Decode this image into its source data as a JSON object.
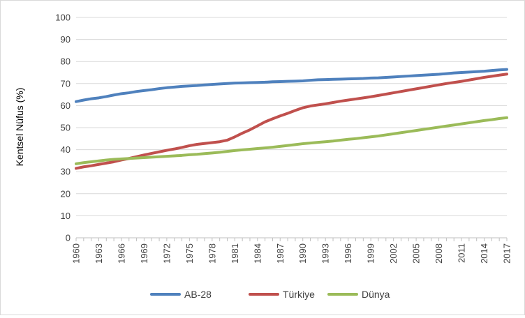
{
  "chart_data": {
    "type": "line",
    "title": "",
    "xlabel": "",
    "ylabel": "Kentsel Nüfus (%)",
    "ylim": [
      0,
      100
    ],
    "yticks": [
      "0",
      "10",
      "20",
      "30",
      "40",
      "50",
      "60",
      "70",
      "80",
      "90",
      "100"
    ],
    "xtick_labels": [
      "1960",
      "1963",
      "1966",
      "1969",
      "1972",
      "1975",
      "1978",
      "1981",
      "1984",
      "1987",
      "1990",
      "1993",
      "1996",
      "1999",
      "2002",
      "2005",
      "2008",
      "2011",
      "2014",
      "2017"
    ],
    "grid": true,
    "legend_position": "bottom",
    "x": [
      1960,
      1961,
      1962,
      1963,
      1964,
      1965,
      1966,
      1967,
      1968,
      1969,
      1970,
      1971,
      1972,
      1973,
      1974,
      1975,
      1976,
      1977,
      1978,
      1979,
      1980,
      1981,
      1982,
      1983,
      1984,
      1985,
      1986,
      1987,
      1988,
      1989,
      1990,
      1991,
      1992,
      1993,
      1994,
      1995,
      1996,
      1997,
      1998,
      1999,
      2000,
      2001,
      2002,
      2003,
      2004,
      2005,
      2006,
      2007,
      2008,
      2009,
      2010,
      2011,
      2012,
      2013,
      2014,
      2015,
      2016,
      2017
    ],
    "series": [
      {
        "name": "AB-28",
        "color": "#4f81bd",
        "values": [
          61.8,
          62.5,
          63.1,
          63.5,
          64.1,
          64.8,
          65.4,
          65.8,
          66.4,
          66.8,
          67.2,
          67.7,
          68.1,
          68.4,
          68.7,
          68.9,
          69.1,
          69.4,
          69.6,
          69.8,
          70.0,
          70.2,
          70.3,
          70.4,
          70.5,
          70.6,
          70.8,
          70.9,
          71.0,
          71.1,
          71.2,
          71.5,
          71.7,
          71.8,
          71.9,
          72.0,
          72.1,
          72.2,
          72.3,
          72.5,
          72.6,
          72.8,
          73.0,
          73.2,
          73.4,
          73.6,
          73.8,
          74.0,
          74.2,
          74.5,
          74.8,
          75.0,
          75.2,
          75.4,
          75.6,
          75.9,
          76.2,
          76.4
        ]
      },
      {
        "name": "Türkiye",
        "color": "#c0504d",
        "values": [
          31.5,
          32.2,
          32.7,
          33.3,
          33.9,
          34.5,
          35.3,
          36.0,
          36.8,
          37.6,
          38.3,
          39.0,
          39.7,
          40.3,
          41.0,
          41.8,
          42.4,
          42.8,
          43.2,
          43.6,
          44.3,
          45.8,
          47.5,
          49.0,
          50.8,
          52.6,
          54.0,
          55.3,
          56.5,
          57.8,
          59.0,
          59.8,
          60.3,
          60.8,
          61.4,
          62.0,
          62.5,
          63.0,
          63.5,
          64.0,
          64.6,
          65.2,
          65.8,
          66.4,
          67.0,
          67.6,
          68.2,
          68.8,
          69.4,
          70.0,
          70.5,
          71.0,
          71.6,
          72.2,
          72.8,
          73.3,
          73.8,
          74.3
        ]
      },
      {
        "name": "Dünya",
        "color": "#9bbb59",
        "values": [
          33.6,
          34.1,
          34.5,
          34.9,
          35.3,
          35.6,
          35.8,
          36.0,
          36.2,
          36.4,
          36.6,
          36.8,
          37.0,
          37.2,
          37.4,
          37.7,
          37.9,
          38.2,
          38.5,
          38.8,
          39.2,
          39.6,
          39.9,
          40.2,
          40.5,
          40.8,
          41.1,
          41.5,
          41.9,
          42.3,
          42.7,
          43.0,
          43.3,
          43.6,
          43.9,
          44.3,
          44.7,
          45.0,
          45.4,
          45.8,
          46.2,
          46.7,
          47.2,
          47.7,
          48.2,
          48.7,
          49.2,
          49.7,
          50.2,
          50.7,
          51.2,
          51.7,
          52.2,
          52.7,
          53.2,
          53.6,
          54.1,
          54.5
        ]
      }
    ]
  }
}
